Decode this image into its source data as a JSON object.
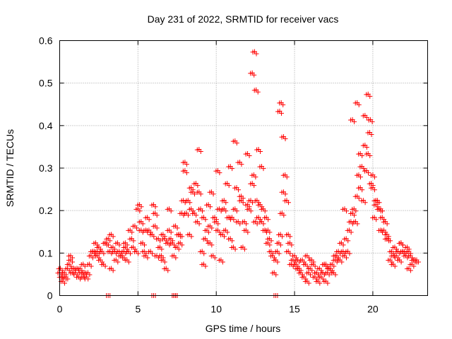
{
  "colors": {
    "series": "#ff0000",
    "axis": "#000000",
    "grid": "#a0a0a0",
    "background": "#ffffff"
  },
  "chart_data": {
    "type": "scatter",
    "title": "Day 231 of 2022, SRMTID for receiver vacs",
    "xlabel": "GPS time / hours",
    "ylabel": "SRMTID / TECUs",
    "xlim": [
      0,
      23.5
    ],
    "ylim": [
      0,
      0.6
    ],
    "grid": true,
    "x_ticks": [
      0,
      5,
      10,
      15,
      20
    ],
    "x_tick_labels": [
      "0",
      "5",
      "10",
      "15",
      "20"
    ],
    "y_ticks": [
      0,
      0.1,
      0.2,
      0.3,
      0.4,
      0.5,
      0.6
    ],
    "y_tick_labels": [
      "0",
      "0.1",
      "0.2",
      "0.3",
      "0.4",
      "0.5",
      "0.6"
    ],
    "marker": "plus",
    "series": [
      {
        "name": "SRMTID",
        "x": [
          0.0,
          0.1,
          0.2,
          0.3,
          0.4,
          0.5,
          0.6,
          0.7,
          0.8,
          0.9,
          1.0,
          1.1,
          1.2,
          1.3,
          1.4,
          1.5,
          1.6,
          1.7,
          1.8,
          1.9,
          2.0,
          2.1,
          2.2,
          2.3,
          2.4,
          2.5,
          2.6,
          2.7,
          2.8,
          2.9,
          3.0,
          3.1,
          3.2,
          3.3,
          3.4,
          3.5,
          3.6,
          3.7,
          3.8,
          3.9,
          4.0,
          4.1,
          4.2,
          4.3,
          4.4,
          4.5,
          4.6,
          4.7,
          4.8,
          4.9,
          5.0,
          5.1,
          5.2,
          5.3,
          5.4,
          5.5,
          5.6,
          5.7,
          5.8,
          5.9,
          6.0,
          6.1,
          6.2,
          6.3,
          6.4,
          6.5,
          6.6,
          6.7,
          6.8,
          6.9,
          7.0,
          7.1,
          7.2,
          7.3,
          7.4,
          7.5,
          7.6,
          7.7,
          7.8,
          7.9,
          8.0,
          8.1,
          8.2,
          8.3,
          8.4,
          8.5,
          8.6,
          8.7,
          8.8,
          8.9,
          9.0,
          9.1,
          9.2,
          9.3,
          9.4,
          9.5,
          9.6,
          9.7,
          9.8,
          9.9,
          10.0,
          10.1,
          10.2,
          10.3,
          10.4,
          10.5,
          10.6,
          10.7,
          10.8,
          10.9,
          11.0,
          11.1,
          11.2,
          11.3,
          11.4,
          11.5,
          11.6,
          11.7,
          11.8,
          11.9,
          12.0,
          12.1,
          12.2,
          12.3,
          12.4,
          12.5,
          12.6,
          12.7,
          12.8,
          12.9,
          13.0,
          13.1,
          13.2,
          13.3,
          13.4,
          13.5,
          13.6,
          13.7,
          13.8,
          13.9,
          14.0,
          14.1,
          14.2,
          14.3,
          14.4,
          14.5,
          14.6,
          14.7,
          14.8,
          14.9,
          15.0,
          15.1,
          15.2,
          15.3,
          15.4,
          15.5,
          15.6,
          15.7,
          15.8,
          15.9,
          16.0,
          16.1,
          16.2,
          16.3,
          16.4,
          16.5,
          16.6,
          16.7,
          16.8,
          16.9,
          17.0,
          17.1,
          17.2,
          17.3,
          17.4,
          17.5,
          17.6,
          17.7,
          17.8,
          17.9,
          18.0,
          18.1,
          18.2,
          18.3,
          18.4,
          18.5,
          18.6,
          18.7,
          18.8,
          18.9,
          19.0,
          19.1,
          19.2,
          19.3,
          19.4,
          19.5,
          19.6,
          19.7,
          19.8,
          19.9,
          20.0,
          20.1,
          20.2,
          20.3,
          20.4,
          20.5,
          20.6,
          20.7,
          20.8,
          20.9,
          21.0,
          21.1,
          21.2,
          21.3,
          21.4,
          21.5,
          21.6,
          21.7,
          21.8,
          21.9,
          22.0,
          22.1,
          22.2,
          22.3,
          22.4,
          22.5,
          22.6,
          22.7,
          22.8,
          3.1,
          6.0,
          7.3,
          7.4,
          13.8,
          0.05,
          0.3,
          0.7,
          1.5,
          2.4,
          3.3,
          4.2,
          5.2,
          5.5,
          6.1,
          6.6,
          7.0,
          7.7,
          8.0,
          8.4,
          8.9,
          9.2,
          9.6,
          10.1,
          10.5,
          10.9,
          11.2,
          11.6,
          12.0,
          12.3,
          12.45,
          12.55,
          12.7,
          12.9,
          13.3,
          14.05,
          14.15,
          14.3,
          14.6,
          15.2,
          15.8,
          16.4,
          17.0,
          17.6,
          18.2,
          18.7,
          19.0,
          19.2,
          19.5,
          19.7,
          19.85,
          20.0,
          20.2,
          20.5,
          20.9,
          21.3,
          21.8,
          22.3,
          22.7
        ],
        "y": [
          0.05,
          0.04,
          0.03,
          0.04,
          0.04,
          0.06,
          0.07,
          0.09,
          0.05,
          0.06,
          0.05,
          0.06,
          0.04,
          0.06,
          0.05,
          0.07,
          0.05,
          0.04,
          0.05,
          0.07,
          0.09,
          0.1,
          0.1,
          0.12,
          0.09,
          0.11,
          0.08,
          0.1,
          0.07,
          0.12,
          0.12,
          0.13,
          0.1,
          0.06,
          0.11,
          0.1,
          0.08,
          0.12,
          0.1,
          0.09,
          0.09,
          0.1,
          0.11,
          0.08,
          0.1,
          0.15,
          0.13,
          0.11,
          0.16,
          0.1,
          0.2,
          0.21,
          0.15,
          0.12,
          0.1,
          0.15,
          0.18,
          0.15,
          0.1,
          0.14,
          0.21,
          0.16,
          0.09,
          0.13,
          0.11,
          0.09,
          0.14,
          0.13,
          0.06,
          0.12,
          0.15,
          0.13,
          0.12,
          0.09,
          0.16,
          0.11,
          0.14,
          0.12,
          0.19,
          0.22,
          0.29,
          0.19,
          0.22,
          0.14,
          0.2,
          0.24,
          0.19,
          0.26,
          0.17,
          0.24,
          0.2,
          0.1,
          0.07,
          0.13,
          0.15,
          0.21,
          0.16,
          0.24,
          0.09,
          0.18,
          0.17,
          0.15,
          0.2,
          0.08,
          0.14,
          0.2,
          0.15,
          0.26,
          0.18,
          0.13,
          0.18,
          0.11,
          0.2,
          0.25,
          0.17,
          0.31,
          0.22,
          0.11,
          0.17,
          0.15,
          0.21,
          0.2,
          0.22,
          0.26,
          0.28,
          0.17,
          0.22,
          0.18,
          0.21,
          0.17,
          0.2,
          0.15,
          0.18,
          0.12,
          0.13,
          0.1,
          0.09,
          0.05,
          0.08,
          0.1,
          0.12,
          0.14,
          0.19,
          0.24,
          0.28,
          0.22,
          0.1,
          0.12,
          0.07,
          0.08,
          0.09,
          0.07,
          0.08,
          0.06,
          0.05,
          0.08,
          0.04,
          0.07,
          0.09,
          0.05,
          0.06,
          0.08,
          0.07,
          0.04,
          0.05,
          0.03,
          0.06,
          0.04,
          0.05,
          0.07,
          0.03,
          0.05,
          0.06,
          0.06,
          0.07,
          0.05,
          0.08,
          0.09,
          0.1,
          0.08,
          0.12,
          0.1,
          0.09,
          0.13,
          0.1,
          0.15,
          0.17,
          0.19,
          0.2,
          0.17,
          0.23,
          0.28,
          0.25,
          0.3,
          0.22,
          0.35,
          0.29,
          0.33,
          0.38,
          0.26,
          0.28,
          0.18,
          0.21,
          0.22,
          0.2,
          0.2,
          0.18,
          0.15,
          0.17,
          0.14,
          0.13,
          0.08,
          0.1,
          0.09,
          0.11,
          0.09,
          0.1,
          0.08,
          0.12,
          0.1,
          0.1,
          0.09,
          0.11,
          0.1,
          0.09,
          0.07,
          0.08,
          0.08,
          0.08,
          0.0,
          0.0,
          0.0,
          0.0,
          0.0,
          0.06,
          0.05,
          0.08,
          0.04,
          0.1,
          0.14,
          0.12,
          0.17,
          0.09,
          0.19,
          0.08,
          0.2,
          0.14,
          0.31,
          0.25,
          0.34,
          0.18,
          0.12,
          0.29,
          0.22,
          0.3,
          0.36,
          0.23,
          0.33,
          0.52,
          0.57,
          0.48,
          0.34,
          0.3,
          0.15,
          0.43,
          0.45,
          0.37,
          0.14,
          0.06,
          0.03,
          0.05,
          0.07,
          0.09,
          0.2,
          0.41,
          0.45,
          0.33,
          0.42,
          0.47,
          0.41,
          0.25,
          0.22,
          0.15,
          0.13,
          0.07,
          0.12,
          0.06,
          0.08
        ],
        "color": "#ff0000"
      }
    ]
  }
}
